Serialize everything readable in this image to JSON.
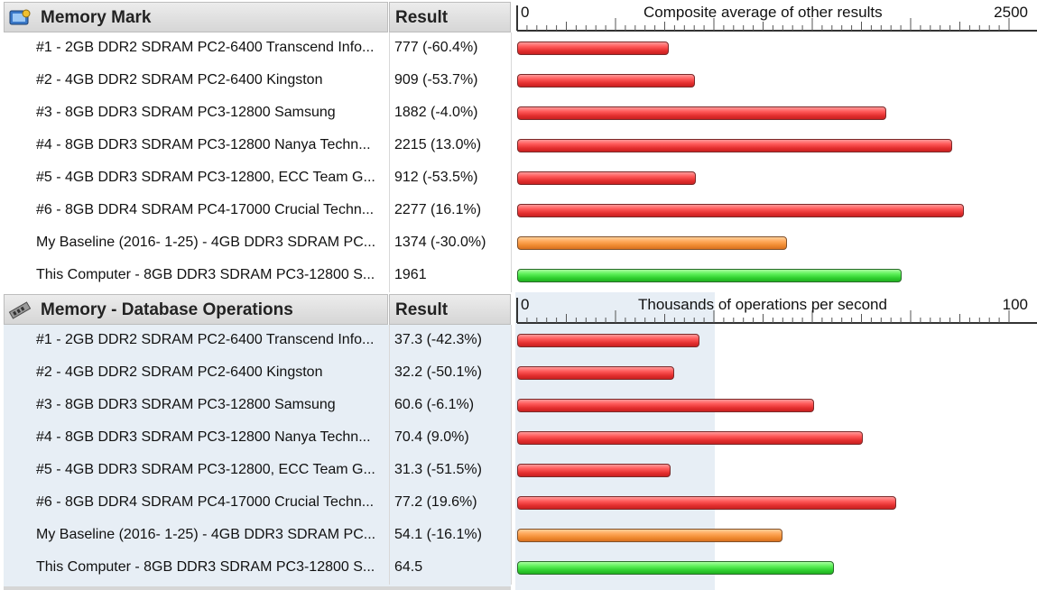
{
  "accent_colors": {
    "red": "#e43030",
    "orange": "#ef8a30",
    "green": "#30d030"
  },
  "sections": [
    {
      "title": "Memory Mark",
      "icon": "memory-mark-icon",
      "result_header": "Result",
      "axis": {
        "min_label": "0",
        "max_label": "2500",
        "caption": "Composite average of other results",
        "max": 2500
      },
      "rows": [
        {
          "name": "#1 - 2GB DDR2 SDRAM PC2-6400 Transcend Info...",
          "result": "777 (-60.4%)",
          "value": 777,
          "color": "red"
        },
        {
          "name": "#2 - 4GB DDR2 SDRAM PC2-6400 Kingston",
          "result": "909 (-53.7%)",
          "value": 909,
          "color": "red"
        },
        {
          "name": "#3 - 8GB DDR3 SDRAM PC3-12800 Samsung",
          "result": "1882 (-4.0%)",
          "value": 1882,
          "color": "red"
        },
        {
          "name": "#4 - 8GB DDR3 SDRAM PC3-12800 Nanya Techn...",
          "result": "2215 (13.0%)",
          "value": 2215,
          "color": "red"
        },
        {
          "name": "#5 - 4GB DDR3 SDRAM PC3-12800, ECC Team G...",
          "result": "912 (-53.5%)",
          "value": 912,
          "color": "red"
        },
        {
          "name": "#6 - 8GB DDR4 SDRAM PC4-17000 Crucial Techn...",
          "result": "2277 (16.1%)",
          "value": 2277,
          "color": "red"
        },
        {
          "name": "My Baseline (2016- 1-25) - 4GB DDR3 SDRAM PC...",
          "result": "1374 (-30.0%)",
          "value": 1374,
          "color": "orange"
        },
        {
          "name": "This Computer - 8GB DDR3 SDRAM PC3-12800 S...",
          "result": "1961",
          "value": 1961,
          "color": "green"
        }
      ]
    },
    {
      "title": "Memory - Database Operations",
      "icon": "memory-stick-icon",
      "result_header": "Result",
      "axis": {
        "min_label": "0",
        "max_label": "100",
        "caption": "Thousands of operations per second",
        "max": 100
      },
      "rows": [
        {
          "name": "#1 - 2GB DDR2 SDRAM PC2-6400 Transcend Info...",
          "result": "37.3 (-42.3%)",
          "value": 37.3,
          "color": "red"
        },
        {
          "name": "#2 - 4GB DDR2 SDRAM PC2-6400 Kingston",
          "result": "32.2 (-50.1%)",
          "value": 32.2,
          "color": "red"
        },
        {
          "name": "#3 - 8GB DDR3 SDRAM PC3-12800 Samsung",
          "result": "60.6 (-6.1%)",
          "value": 60.6,
          "color": "red"
        },
        {
          "name": "#4 - 8GB DDR3 SDRAM PC3-12800 Nanya Techn...",
          "result": "70.4 (9.0%)",
          "value": 70.4,
          "color": "red"
        },
        {
          "name": "#5 - 4GB DDR3 SDRAM PC3-12800, ECC Team G...",
          "result": "31.3 (-51.5%)",
          "value": 31.3,
          "color": "red"
        },
        {
          "name": "#6 - 8GB DDR4 SDRAM PC4-17000 Crucial Techn...",
          "result": "77.2 (19.6%)",
          "value": 77.2,
          "color": "red"
        },
        {
          "name": "My Baseline (2016- 1-25) - 4GB DDR3 SDRAM PC...",
          "result": "54.1 (-16.1%)",
          "value": 54.1,
          "color": "orange"
        },
        {
          "name": "This Computer - 8GB DDR3 SDRAM PC3-12800 S...",
          "result": "64.5",
          "value": 64.5,
          "color": "green"
        }
      ]
    }
  ]
}
